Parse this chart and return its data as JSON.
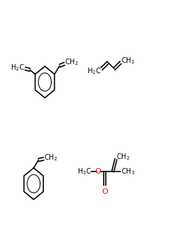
{
  "background": "#ffffff",
  "fig_width": 2.5,
  "fig_height": 3.5,
  "dpi": 100,
  "black": "#000000",
  "red": "#ff0000",
  "lw": 1.2,
  "fs": 7
}
